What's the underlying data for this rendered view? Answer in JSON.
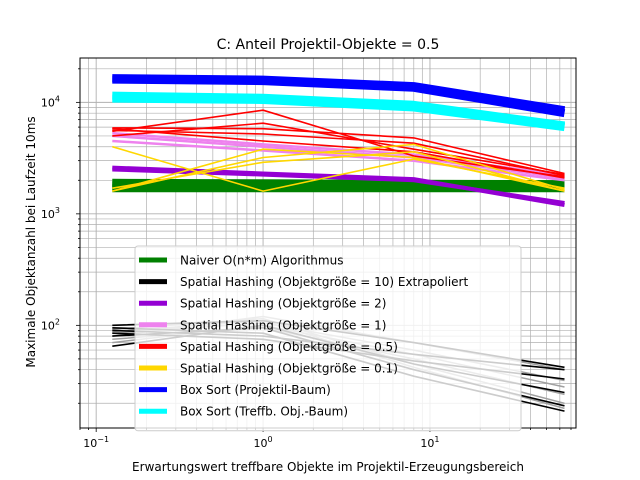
{
  "chart_data": {
    "type": "line",
    "title": "C: Anteil Projektil-Objekte = 0.5",
    "xlabel": "Erwartungswert treffbare Objekte im Projektil-Erzeugungsbereich",
    "ylabel": "Maximale Objektanzahl bei Laufzeit 10ms",
    "xscale": "log",
    "yscale": "log",
    "xlim": [
      0.08,
      75
    ],
    "ylim": [
      12,
      25000
    ],
    "grid": true,
    "legend_position": "lower-center",
    "x_ticks": [
      {
        "value": 0.1,
        "base": "10",
        "exp": "−1"
      },
      {
        "value": 1,
        "base": "10",
        "exp": "0"
      },
      {
        "value": 10,
        "base": "10",
        "exp": "1"
      }
    ],
    "y_ticks": [
      {
        "value": 100,
        "base": "10",
        "exp": "2"
      },
      {
        "value": 1000,
        "base": "10",
        "exp": "3"
      },
      {
        "value": 10000,
        "base": "10",
        "exp": "4"
      }
    ],
    "x": [
      0.125,
      1,
      8,
      64
    ],
    "series": [
      {
        "name": "Naiver O(n*m) Algorithmus",
        "color": "#008000",
        "width": 8,
        "runs": [
          [
            1800,
            1800,
            1800,
            1800
          ],
          [
            1700,
            1700,
            1700,
            1700
          ],
          [
            1900,
            1880,
            1860,
            1850
          ]
        ]
      },
      {
        "name": "Spatial Hashing (Objektgröße = 10) Extrapoliert",
        "color": "#000000",
        "width": 1.6,
        "runs": [
          [
            90,
            80,
            55,
            40
          ],
          [
            85,
            75,
            48,
            33
          ],
          [
            100,
            110,
            70,
            42
          ],
          [
            65,
            100,
            45,
            25
          ],
          [
            80,
            95,
            40,
            19
          ],
          [
            95,
            85,
            35,
            17
          ]
        ]
      },
      {
        "name": "Spatial Hashing (Objektgröße = 2)",
        "color": "#9400d3",
        "width": 4,
        "runs": [
          [
            2600,
            2300,
            2050,
            1200
          ],
          [
            2500,
            2250,
            2000,
            1250
          ]
        ]
      },
      {
        "name": "Spatial Hashing (Objektgröße = 1)",
        "color": "#ee82ee",
        "width": 2.5,
        "runs": [
          [
            5000,
            4000,
            3200,
            2100
          ],
          [
            4500,
            3700,
            3000,
            2000
          ],
          [
            5300,
            4200,
            3400,
            2200
          ]
        ]
      },
      {
        "name": "Spatial Hashing (Objektgröße = 0.5)",
        "color": "#ff0000",
        "width": 1.6,
        "runs": [
          [
            5900,
            5800,
            4800,
            2300
          ],
          [
            5600,
            5200,
            4300,
            2200
          ],
          [
            5500,
            8500,
            3300,
            2150
          ],
          [
            5000,
            6500,
            3800,
            2250
          ],
          [
            5800,
            4500,
            3600,
            2100
          ]
        ]
      },
      {
        "name": "Spatial Hashing (Objektgröße = 0.1)",
        "color": "#ffd700",
        "width": 1.6,
        "runs": [
          [
            1600,
            3800,
            3200,
            1600
          ],
          [
            4000,
            1600,
            3100,
            1700
          ],
          [
            1600,
            3200,
            4200,
            1650
          ],
          [
            1700,
            2900,
            3600,
            1600
          ]
        ]
      },
      {
        "name": "Box Sort (Projektil-Baum)",
        "color": "#0000ff",
        "width": 8,
        "runs": [
          [
            16500,
            16000,
            14000,
            8500
          ],
          [
            16000,
            15500,
            13500,
            8000
          ]
        ]
      },
      {
        "name": "Box Sort (Treffb. Obj.-Baum)",
        "color": "#00ffff",
        "width": 8,
        "runs": [
          [
            11500,
            11000,
            9500,
            6200
          ],
          [
            10800,
            10500,
            9000,
            6000
          ]
        ]
      }
    ],
    "gray_runs": [
      [
        80,
        120,
        70,
        40
      ],
      [
        85,
        105,
        60,
        32
      ],
      [
        75,
        95,
        50,
        24
      ],
      [
        92,
        115,
        45,
        20
      ],
      [
        70,
        100,
        55,
        28
      ],
      [
        88,
        110,
        42,
        18
      ]
    ]
  }
}
